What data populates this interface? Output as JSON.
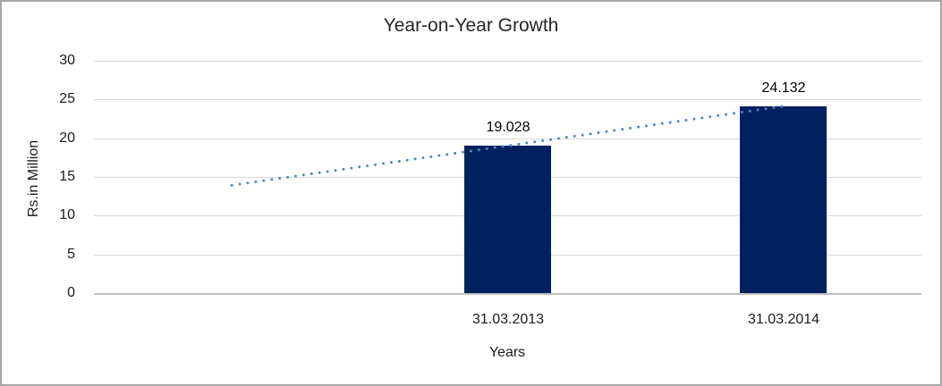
{
  "chart_data": {
    "type": "bar",
    "title": "Year-on-Year Growth",
    "xlabel": "Years",
    "ylabel": "Rs.in Million",
    "categories": [
      "31.03.2013",
      "31.03.2014"
    ],
    "values": [
      19.028,
      24.132
    ],
    "data_labels": [
      "19.028",
      "24.132"
    ],
    "ylim": [
      0,
      30
    ],
    "yticks": [
      0,
      5,
      10,
      15,
      20,
      25,
      30
    ],
    "grid": true,
    "legend": "none",
    "bar_color": "#002060",
    "gridline_color": "#d9d9d9",
    "axis_line_color": "#bfbfbf",
    "border_color": "#a6a6a6",
    "slots": [
      {
        "category": "",
        "value": null,
        "label": ""
      },
      {
        "category": "31.03.2013",
        "value": 19.028,
        "label": "19.028"
      },
      {
        "category": "31.03.2014",
        "value": 24.132,
        "label": "24.132"
      }
    ],
    "trendline": {
      "style": "dotted-linear",
      "color": "#4e86c8",
      "start_slot": 0,
      "end_slot": 2,
      "start_value": 13.924,
      "end_value": 24.132
    }
  }
}
